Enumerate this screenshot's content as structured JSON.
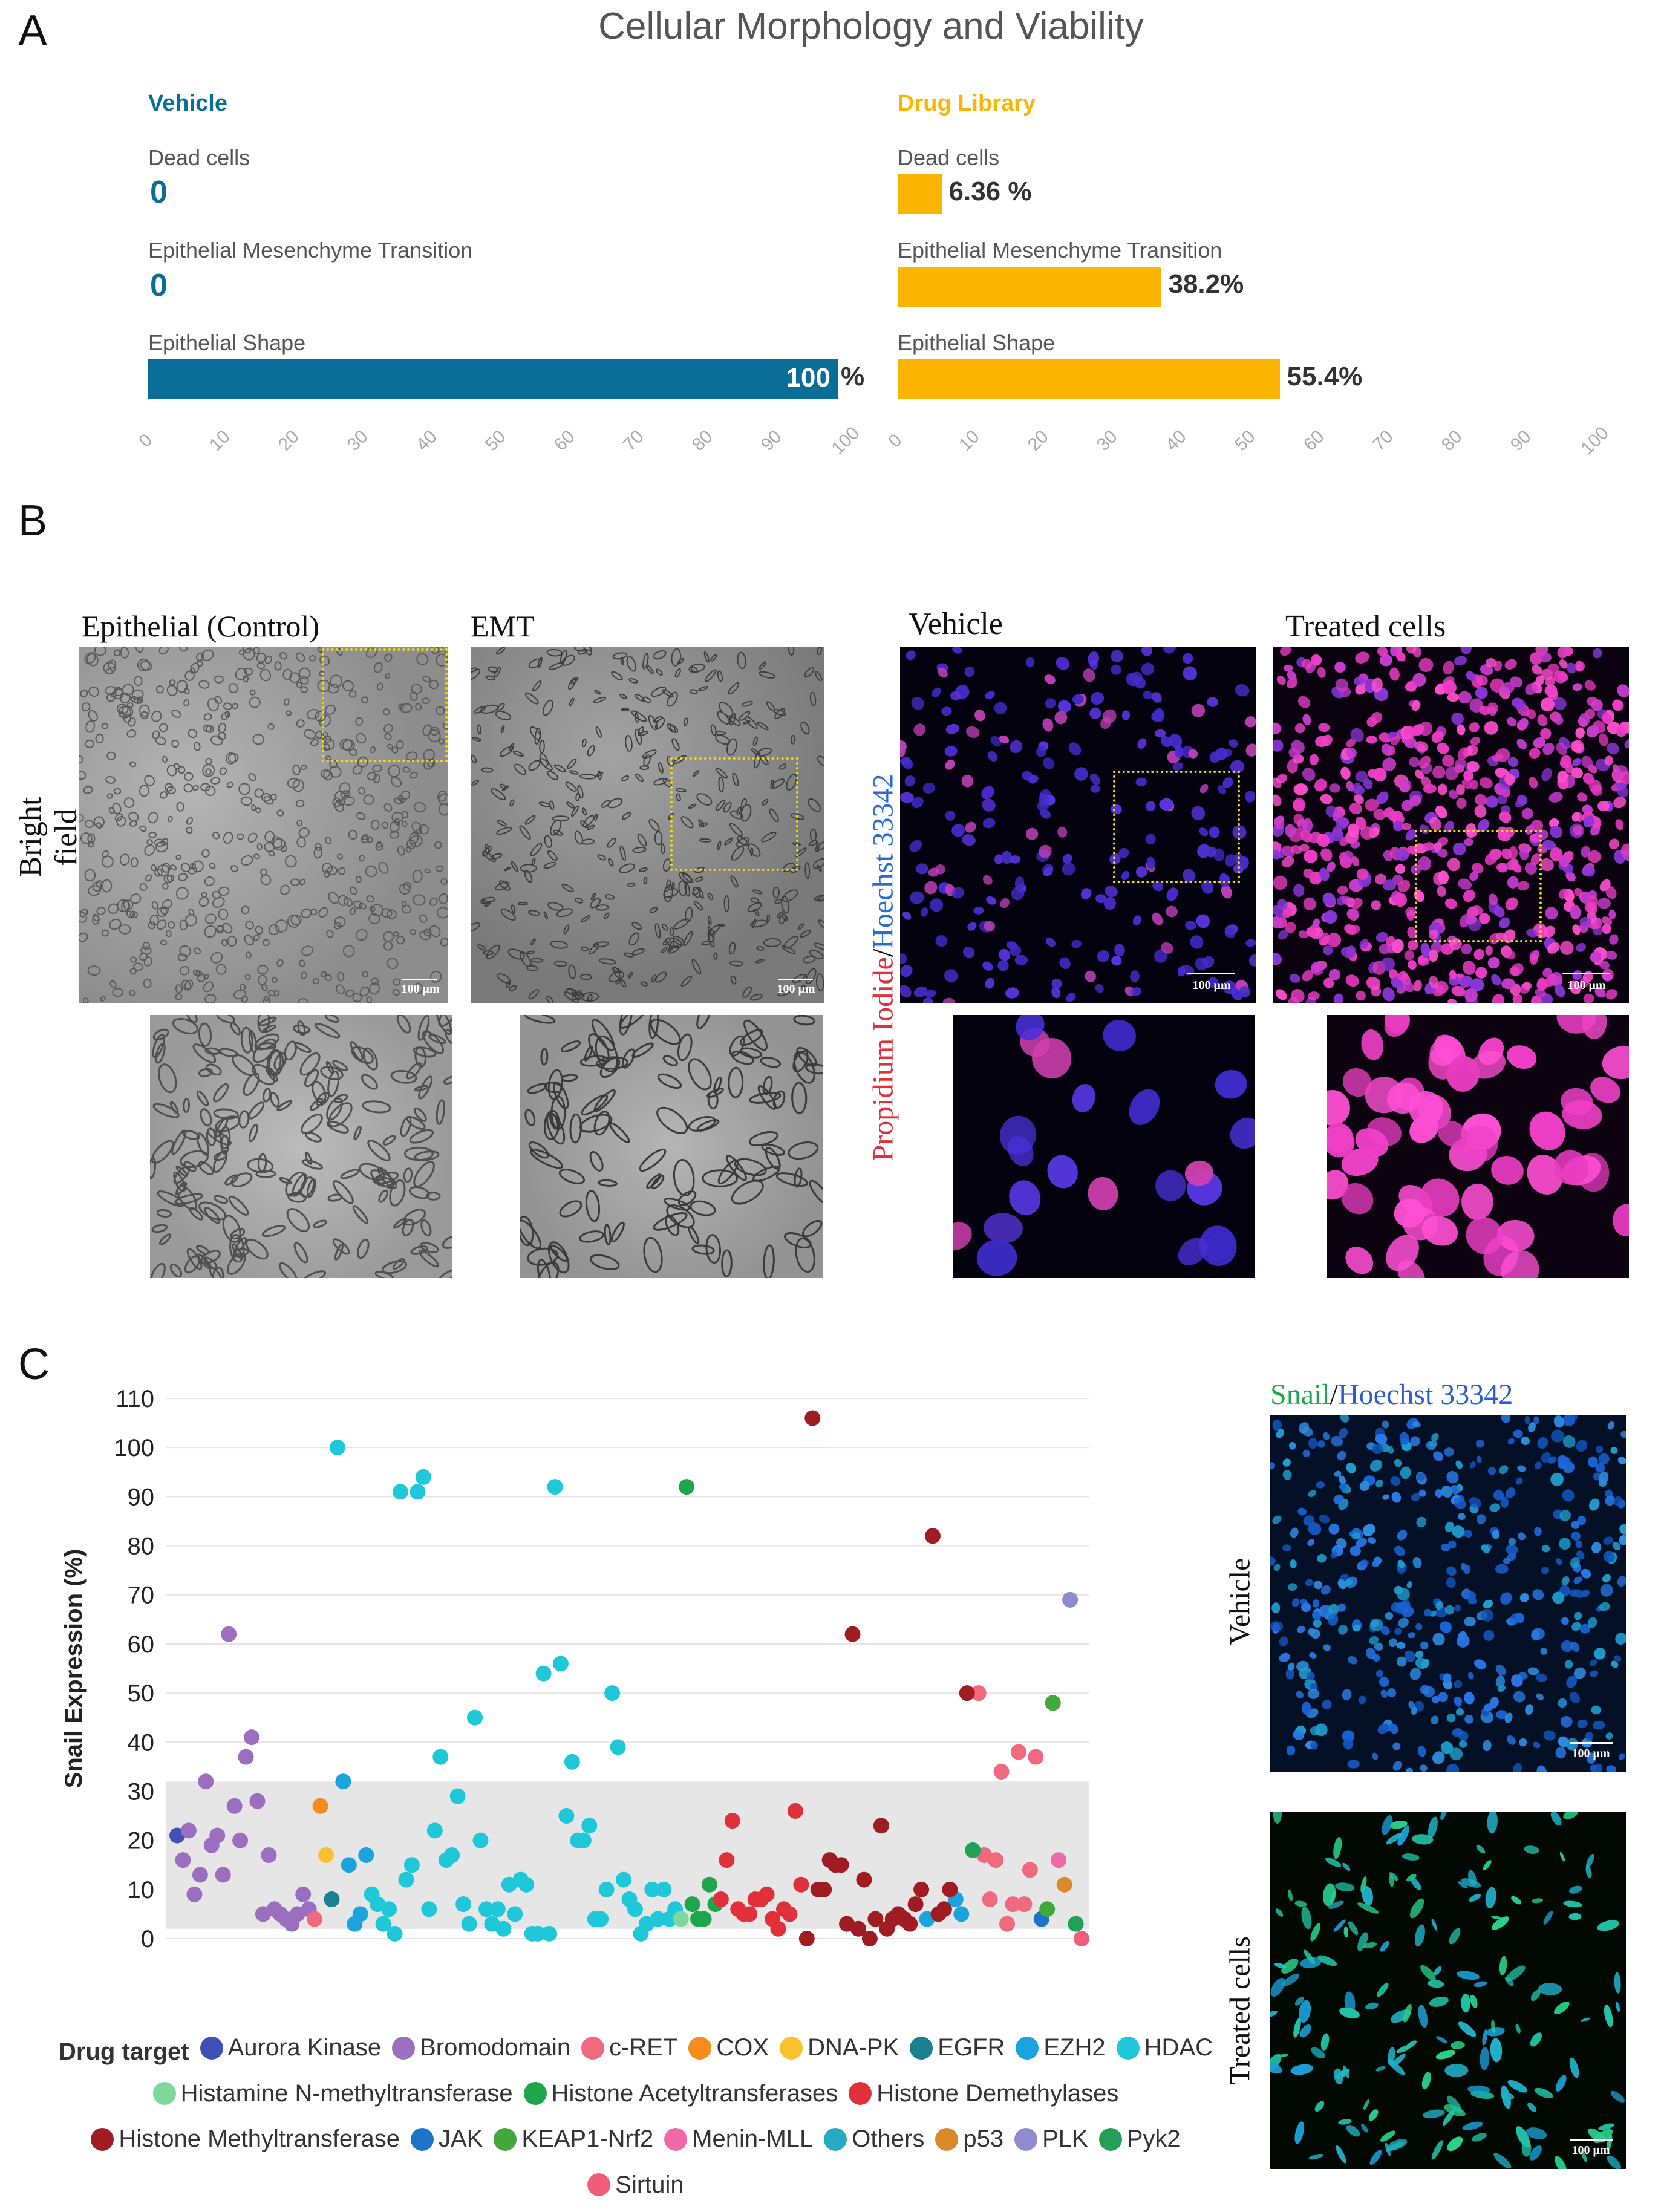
{
  "panels": {
    "a": "A",
    "b": "B",
    "c": "C"
  },
  "panel_a": {
    "title": "Cellular Morphology and Viability",
    "vehicle": {
      "header": "Vehicle",
      "color": "#0b6e99",
      "metrics": [
        {
          "label": "Dead cells",
          "value": 0,
          "display": "0"
        },
        {
          "label": "Epithelial Mesenchyme Transition",
          "value": 0,
          "display": "0"
        },
        {
          "label": "Epithelial Shape",
          "value": 100,
          "display": "100",
          "suffix": "%"
        }
      ]
    },
    "drug": {
      "header": "Drug Library",
      "color": "#fbb400",
      "metrics": [
        {
          "label": "Dead cells",
          "value": 6.36,
          "display": "6.36 %"
        },
        {
          "label": "Epithelial Mesenchyme Transition",
          "value": 38.2,
          "display": "38.2%"
        },
        {
          "label": "Epithelial Shape",
          "value": 55.4,
          "display": "55.4%"
        }
      ]
    },
    "axis_ticks": [
      "0",
      "10",
      "20",
      "30",
      "40",
      "50",
      "60",
      "70",
      "80",
      "90",
      "100"
    ]
  },
  "panel_b": {
    "bf_header_1": "Epithelial (Control)",
    "bf_header_2": "EMT",
    "bf_side_label": "Bright field",
    "fl_header_1": "Vehicle",
    "fl_header_2": "Treated cells",
    "fl_side_label_pi": "Propidium Iodide",
    "fl_side_label_slash": "/",
    "fl_side_label_h": "Hoechst 33342",
    "scale_label": "100 μm"
  },
  "panel_c": {
    "micro_title_snail": "Snail",
    "micro_title_slash": "/",
    "micro_title_h": "Hoechst 33342",
    "micro_label_vehicle": "Vehicle",
    "micro_label_treated": "Treated cells",
    "scale_label": "100 μm"
  },
  "chart_data": {
    "type": "scatter",
    "title": "",
    "xlabel": "",
    "ylabel": "Snail Expression (%)",
    "ylim": [
      0,
      110
    ],
    "yticks": [
      "0",
      "10",
      "20",
      "30",
      "40",
      "50",
      "60",
      "70",
      "80",
      "90",
      "100",
      "110"
    ],
    "band": [
      2,
      32
    ],
    "legend_title": "Drug target",
    "series": [
      {
        "name": "Aurora Kinase",
        "color": "#3f51b5",
        "points": [
          [
            1,
            21
          ]
        ]
      },
      {
        "name": "Bromodomain",
        "color": "#9c6ec0",
        "points": [
          [
            2,
            16
          ],
          [
            3,
            22
          ],
          [
            4,
            9
          ],
          [
            5,
            13
          ],
          [
            6,
            32
          ],
          [
            7,
            19
          ],
          [
            8,
            21
          ],
          [
            9,
            13
          ],
          [
            10,
            62
          ],
          [
            11,
            27
          ],
          [
            12,
            20
          ],
          [
            13,
            37
          ],
          [
            14,
            41
          ],
          [
            15,
            28
          ],
          [
            16,
            5
          ],
          [
            17,
            17
          ],
          [
            18,
            6
          ],
          [
            19,
            5
          ],
          [
            20,
            4
          ],
          [
            21,
            3
          ],
          [
            22,
            5
          ],
          [
            23,
            9
          ],
          [
            24,
            6
          ]
        ]
      },
      {
        "name": "c-RET",
        "color": "#f06a7d",
        "points": [
          [
            25,
            4
          ],
          [
            141,
            50
          ],
          [
            142,
            17
          ],
          [
            143,
            8
          ],
          [
            144,
            16
          ],
          [
            145,
            34
          ],
          [
            146,
            3
          ],
          [
            147,
            7
          ],
          [
            148,
            38
          ],
          [
            149,
            7
          ],
          [
            150,
            14
          ],
          [
            151,
            37
          ]
        ]
      },
      {
        "name": "COX",
        "color": "#f68b1e",
        "points": [
          [
            26,
            27
          ]
        ]
      },
      {
        "name": "DNA-PK",
        "color": "#fbc02d",
        "points": [
          [
            27,
            17
          ]
        ]
      },
      {
        "name": "EGFR",
        "color": "#1a7f8e",
        "points": [
          [
            28,
            8
          ]
        ]
      },
      {
        "name": "EZH2",
        "color": "#1ba3e0",
        "points": [
          [
            30,
            32
          ],
          [
            31,
            15
          ],
          [
            32,
            3
          ],
          [
            33,
            5
          ],
          [
            34,
            17
          ],
          [
            132,
            4
          ],
          [
            137,
            8
          ],
          [
            138,
            5
          ]
        ]
      },
      {
        "name": "HDAC",
        "color": "#1fc8d8",
        "points": [
          [
            29,
            100
          ],
          [
            35,
            9
          ],
          [
            36,
            7
          ],
          [
            37,
            3
          ],
          [
            38,
            6
          ],
          [
            39,
            1
          ],
          [
            40,
            91
          ],
          [
            41,
            12
          ],
          [
            42,
            15
          ],
          [
            43,
            91
          ],
          [
            44,
            94
          ],
          [
            45,
            6
          ],
          [
            46,
            22
          ],
          [
            47,
            37
          ],
          [
            48,
            16
          ],
          [
            49,
            17
          ],
          [
            50,
            29
          ],
          [
            51,
            7
          ],
          [
            52,
            3
          ],
          [
            53,
            45
          ],
          [
            54,
            20
          ],
          [
            55,
            6
          ],
          [
            56,
            3
          ],
          [
            57,
            6
          ],
          [
            58,
            2
          ],
          [
            59,
            11
          ],
          [
            60,
            5
          ],
          [
            61,
            12
          ],
          [
            62,
            11
          ],
          [
            63,
            1
          ],
          [
            64,
            1
          ],
          [
            65,
            54
          ],
          [
            66,
            1
          ],
          [
            67,
            92
          ],
          [
            68,
            56
          ],
          [
            69,
            25
          ],
          [
            70,
            36
          ],
          [
            71,
            20
          ],
          [
            72,
            20
          ],
          [
            73,
            23
          ],
          [
            74,
            4
          ],
          [
            75,
            4
          ],
          [
            76,
            10
          ],
          [
            77,
            50
          ],
          [
            78,
            39
          ],
          [
            79,
            12
          ],
          [
            80,
            8
          ],
          [
            81,
            6
          ],
          [
            82,
            1
          ],
          [
            83,
            3
          ],
          [
            84,
            10
          ],
          [
            85,
            4
          ],
          [
            86,
            10
          ],
          [
            87,
            4
          ],
          [
            88,
            6
          ]
        ]
      },
      {
        "name": "Histamine N-methyltransferase",
        "color": "#7dd89a",
        "points": [
          [
            89,
            4
          ]
        ]
      },
      {
        "name": "Histone Acetyltransferases",
        "color": "#1ea64a",
        "points": [
          [
            90,
            92
          ],
          [
            91,
            7
          ],
          [
            92,
            4
          ],
          [
            93,
            4
          ],
          [
            94,
            11
          ],
          [
            95,
            7
          ]
        ]
      },
      {
        "name": "Histone Demethylases",
        "color": "#e0313b",
        "points": [
          [
            96,
            8
          ],
          [
            97,
            16
          ],
          [
            98,
            24
          ],
          [
            99,
            6
          ],
          [
            100,
            5
          ],
          [
            101,
            5
          ],
          [
            102,
            8
          ],
          [
            103,
            8
          ],
          [
            104,
            9
          ],
          [
            105,
            4
          ],
          [
            106,
            2
          ],
          [
            107,
            6
          ],
          [
            108,
            5
          ],
          [
            109,
            26
          ],
          [
            110,
            11
          ]
        ]
      },
      {
        "name": "Histone Methyltransferase",
        "color": "#9e1c22",
        "points": [
          [
            111,
            0
          ],
          [
            112,
            106
          ],
          [
            113,
            10
          ],
          [
            114,
            10
          ],
          [
            115,
            16
          ],
          [
            116,
            15
          ],
          [
            117,
            15
          ],
          [
            118,
            3
          ],
          [
            119,
            62
          ],
          [
            120,
            2
          ],
          [
            121,
            12
          ],
          [
            122,
            0
          ],
          [
            123,
            4
          ],
          [
            124,
            23
          ],
          [
            125,
            2
          ],
          [
            126,
            4
          ],
          [
            127,
            5
          ],
          [
            128,
            4
          ],
          [
            129,
            3
          ],
          [
            130,
            7
          ],
          [
            131,
            10
          ],
          [
            133,
            82
          ],
          [
            134,
            5
          ],
          [
            135,
            6
          ],
          [
            136,
            10
          ],
          [
            139,
            50
          ]
        ]
      },
      {
        "name": "JAK",
        "color": "#1a74c9",
        "points": [
          [
            152,
            4
          ]
        ]
      },
      {
        "name": "KEAP1-Nrf2",
        "color": "#42a83b",
        "points": [
          [
            153,
            6
          ],
          [
            154,
            48
          ]
        ]
      },
      {
        "name": "Menin-MLL",
        "color": "#f06aa8",
        "points": [
          [
            155,
            16
          ]
        ]
      },
      {
        "name": "Others",
        "color": "#25a9c4",
        "points": []
      },
      {
        "name": "p53",
        "color": "#d98a2b",
        "points": [
          [
            156,
            11
          ]
        ]
      },
      {
        "name": "PLK",
        "color": "#8e8bd0",
        "points": [
          [
            157,
            69
          ]
        ]
      },
      {
        "name": "Pyk2",
        "color": "#22a055",
        "points": [
          [
            158,
            3
          ],
          [
            140,
            18
          ]
        ]
      },
      {
        "name": "Sirtuin",
        "color": "#f05c7a",
        "points": [
          [
            159,
            0
          ]
        ]
      }
    ]
  }
}
